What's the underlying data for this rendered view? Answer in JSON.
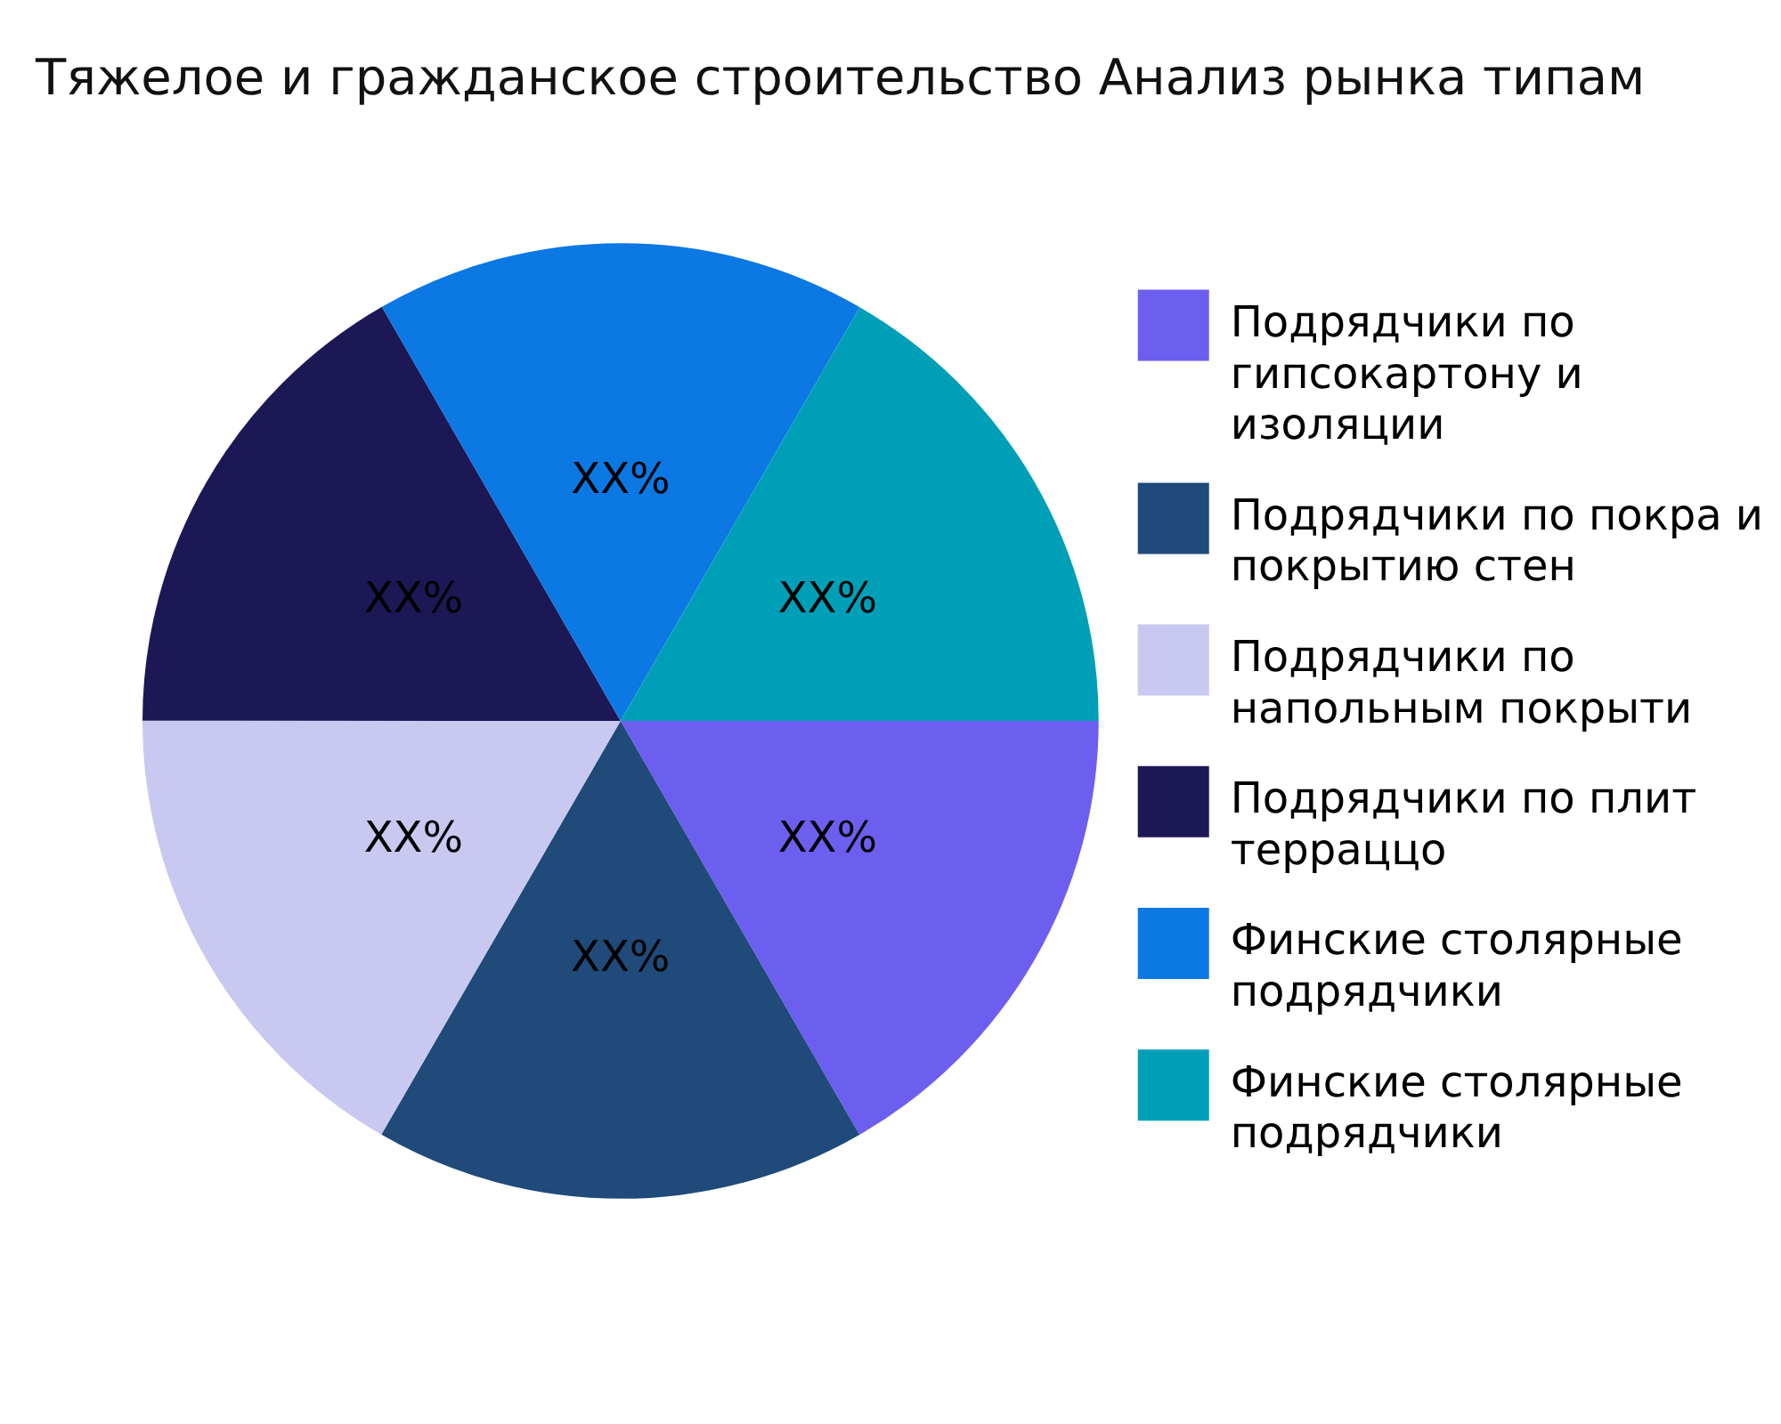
{
  "chart_data": {
    "type": "pie",
    "title": "Тяжелое и гражданское строительство Анализ рынка типам",
    "categories": [
      "Подрядчики по гипсокартону и изоляции",
      "Подрядчики по покра и покрытию стен",
      "Подрядчики по напольным покрыти",
      "Подрядчики по плит терраццо",
      "Финские столярные подрядчики",
      "Финские столярные подрядчики"
    ],
    "values": [
      16.67,
      16.67,
      16.67,
      16.67,
      16.66,
      16.66
    ],
    "value_labels": [
      "XX%",
      "XX%",
      "XX%",
      "XX%",
      "XX%",
      "XX%"
    ],
    "colors": [
      "#6c5ff0",
      "#1f4a7a",
      "#c8c8f0",
      "#1c1856",
      "#0b78e3",
      "#009fb8"
    ],
    "legend": "right"
  }
}
